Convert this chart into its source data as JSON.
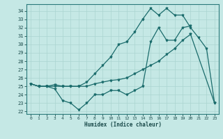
{
  "title": "",
  "xlabel": "Humidex (Indice chaleur)",
  "bg_color": "#c5e8e5",
  "line_color": "#1a6b6b",
  "grid_color": "#aad4d0",
  "xlim": [
    -0.5,
    23.5
  ],
  "ylim": [
    21.7,
    34.8
  ],
  "yticks": [
    22,
    23,
    24,
    25,
    26,
    27,
    28,
    29,
    30,
    31,
    32,
    33,
    34
  ],
  "xticks": [
    0,
    1,
    2,
    3,
    4,
    5,
    6,
    7,
    8,
    9,
    10,
    11,
    12,
    13,
    14,
    15,
    16,
    17,
    18,
    19,
    20,
    21,
    22,
    23
  ],
  "line1_x": [
    0,
    1,
    2,
    3,
    4,
    5,
    6,
    7,
    8,
    9,
    10,
    11,
    12,
    13,
    14,
    15,
    16,
    17,
    18,
    19,
    20,
    21,
    22,
    23
  ],
  "line1_y": [
    25.3,
    25.0,
    25.0,
    25.2,
    25.0,
    25.0,
    25.0,
    25.5,
    26.5,
    27.5,
    28.5,
    30.0,
    30.3,
    31.5,
    33.0,
    34.3,
    33.5,
    34.3,
    33.5,
    33.5,
    32.0,
    30.8,
    29.5,
    23.0
  ],
  "line2_x": [
    0,
    1,
    2,
    3,
    4,
    5,
    6,
    7,
    8,
    9,
    10,
    11,
    12,
    13,
    14,
    15,
    16,
    17,
    18,
    19,
    20
  ],
  "line2_y": [
    25.3,
    25.0,
    25.0,
    24.7,
    23.3,
    23.0,
    22.2,
    23.0,
    24.0,
    24.0,
    24.5,
    24.5,
    24.0,
    24.5,
    25.0,
    30.3,
    32.0,
    30.5,
    30.5,
    32.0,
    32.2
  ],
  "line3_x": [
    0,
    1,
    2,
    3,
    4,
    5,
    6,
    7,
    8,
    9,
    10,
    11,
    12,
    13,
    14,
    15,
    16,
    17,
    18,
    19,
    20,
    23
  ],
  "line3_y": [
    25.3,
    25.0,
    25.0,
    25.0,
    25.0,
    25.0,
    25.0,
    25.0,
    25.3,
    25.5,
    25.7,
    25.8,
    26.0,
    26.5,
    27.0,
    27.5,
    28.0,
    28.8,
    29.5,
    30.5,
    31.2,
    23.0
  ]
}
